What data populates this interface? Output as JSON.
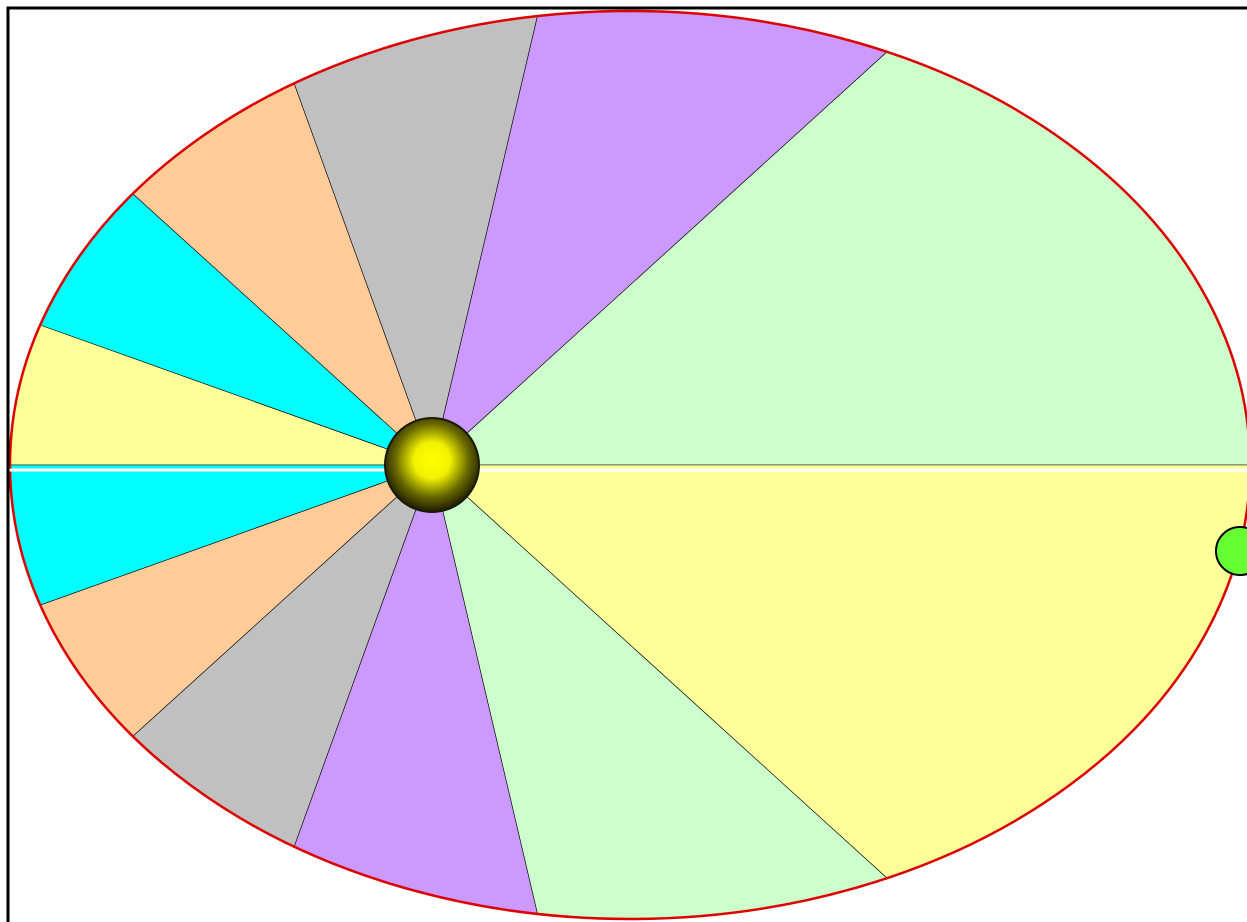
{
  "diagram": {
    "kind": "kepler-second-law-equal-areas",
    "sector_count": 12,
    "sector_colors": [
      "#ffff99",
      "#00ffff",
      "#ffcc99",
      "#c0c0c0",
      "#cc99ff",
      "#ccffcc",
      "#ffff99",
      "#ccffcc",
      "#cc99ff",
      "#c0c0c0",
      "#ffcc99",
      "#00ffff"
    ],
    "orbit_stroke_color": "#dd0000",
    "sector_edge_color": "#000000",
    "axis_line_color": "#ffffff",
    "frame_color": "#000000",
    "sun": {
      "icon": "sun-icon",
      "center_color": "#ffff00",
      "edge_color": "#1a1a00"
    },
    "planet": {
      "icon": "planet-icon",
      "fill_color": "#66ff33",
      "edge_color": "#000000"
    }
  }
}
